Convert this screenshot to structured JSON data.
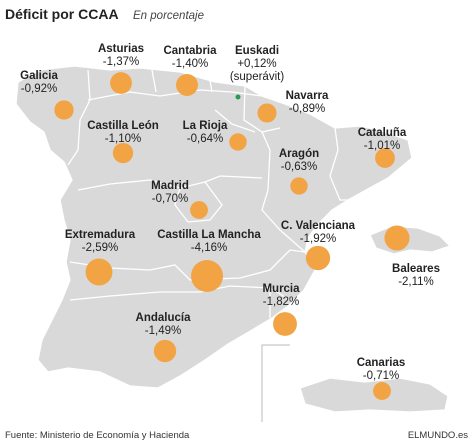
{
  "header": {
    "title": "Déficit por CCAA",
    "subtitle": "En porcentaje"
  },
  "footer": {
    "source": "Fuente: Ministerio de Economía y Hacienda",
    "brand": "ELMUNDO.es"
  },
  "colors": {
    "land": "#d9d9d9",
    "border": "#ffffff",
    "bubble": "#f2a444",
    "surplus": "#2b9a55"
  },
  "chart_data": {
    "type": "bubble-map",
    "unit": "%",
    "regions": [
      {
        "name": "Galicia",
        "label": "-0,92%",
        "value": -0.92
      },
      {
        "name": "Asturias",
        "label": "-1,37%",
        "value": -1.37
      },
      {
        "name": "Cantabria",
        "label": "-1,40%",
        "value": -1.4
      },
      {
        "name": "Euskadi",
        "label": "+0,12%",
        "note": "(superávit)",
        "value": 0.12
      },
      {
        "name": "Navarra",
        "label": "-0,89%",
        "value": -0.89
      },
      {
        "name": "Castilla León",
        "label": "-1,10%",
        "value": -1.1
      },
      {
        "name": "La Rioja",
        "label": "-0,64%",
        "value": -0.64
      },
      {
        "name": "Cataluña",
        "label": "-1,01%",
        "value": -1.01
      },
      {
        "name": "Aragón",
        "label": "-0,63%",
        "value": -0.63
      },
      {
        "name": "Madrid",
        "label": "-0,70%",
        "value": -0.7
      },
      {
        "name": "Extremadura",
        "label": "-2,59%",
        "value": -2.59
      },
      {
        "name": "Castilla La Mancha",
        "label": "-4,16%",
        "value": -4.16
      },
      {
        "name": "C. Valenciana",
        "label": "-1,92%",
        "value": -1.92
      },
      {
        "name": "Baleares",
        "label": "-2,11%",
        "value": -2.11
      },
      {
        "name": "Murcia",
        "label": "-1,82%",
        "value": -1.82
      },
      {
        "name": "Andalucía",
        "label": "-1,49%",
        "value": -1.49
      },
      {
        "name": "Canarias",
        "label": "-0,71%",
        "value": -0.71
      }
    ]
  }
}
